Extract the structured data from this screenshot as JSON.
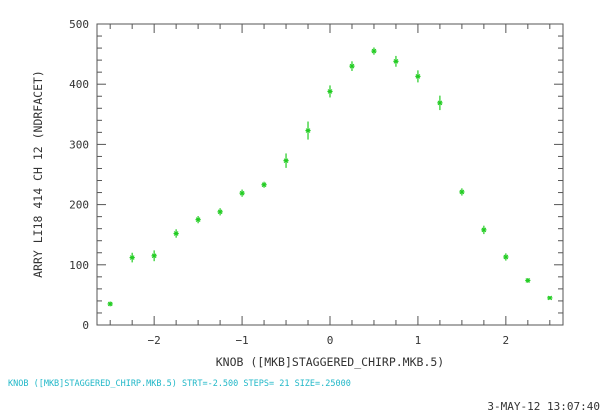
{
  "chart_data": {
    "type": "scatter",
    "xlabel": "KNOB ([MKB]STAGGERED_CHIRP.MKB.5)",
    "ylabel": "ARRY LI18 414 CH  12 (NDRFACET)",
    "xlim": [
      -2.65,
      2.65
    ],
    "ylim": [
      0,
      500
    ],
    "x_ticks": [
      -2,
      -1,
      0,
      1,
      2
    ],
    "y_ticks": [
      0,
      100,
      200,
      300,
      400,
      500
    ],
    "grid": false,
    "series": [
      {
        "color": "#22cc22",
        "points": [
          {
            "x": -2.5,
            "y": 35,
            "err": 4
          },
          {
            "x": -2.25,
            "y": 112,
            "err": 8
          },
          {
            "x": -2.0,
            "y": 115,
            "err": 9
          },
          {
            "x": -1.75,
            "y": 152,
            "err": 7
          },
          {
            "x": -1.5,
            "y": 175,
            "err": 6
          },
          {
            "x": -1.25,
            "y": 188,
            "err": 6
          },
          {
            "x": -1.0,
            "y": 219,
            "err": 6
          },
          {
            "x": -0.75,
            "y": 233,
            "err": 5
          },
          {
            "x": -0.5,
            "y": 273,
            "err": 12
          },
          {
            "x": -0.25,
            "y": 323,
            "err": 15
          },
          {
            "x": 0.0,
            "y": 388,
            "err": 10
          },
          {
            "x": 0.25,
            "y": 430,
            "err": 8
          },
          {
            "x": 0.5,
            "y": 455,
            "err": 6
          },
          {
            "x": 0.75,
            "y": 438,
            "err": 9
          },
          {
            "x": 1.0,
            "y": 413,
            "err": 10
          },
          {
            "x": 1.25,
            "y": 369,
            "err": 12
          },
          {
            "x": 1.5,
            "y": 221,
            "err": 6
          },
          {
            "x": 1.75,
            "y": 158,
            "err": 7
          },
          {
            "x": 2.0,
            "y": 113,
            "err": 6
          },
          {
            "x": 2.25,
            "y": 74,
            "err": 4
          },
          {
            "x": 2.5,
            "y": 45,
            "err": 3
          }
        ]
      }
    ]
  },
  "scan_info": "KNOB ([MKB]STAGGERED_CHIRP.MKB.5)   STRT=-2.500 STEPS= 21 SIZE=.25000",
  "timestamp": "3-MAY-12 13:07:40"
}
